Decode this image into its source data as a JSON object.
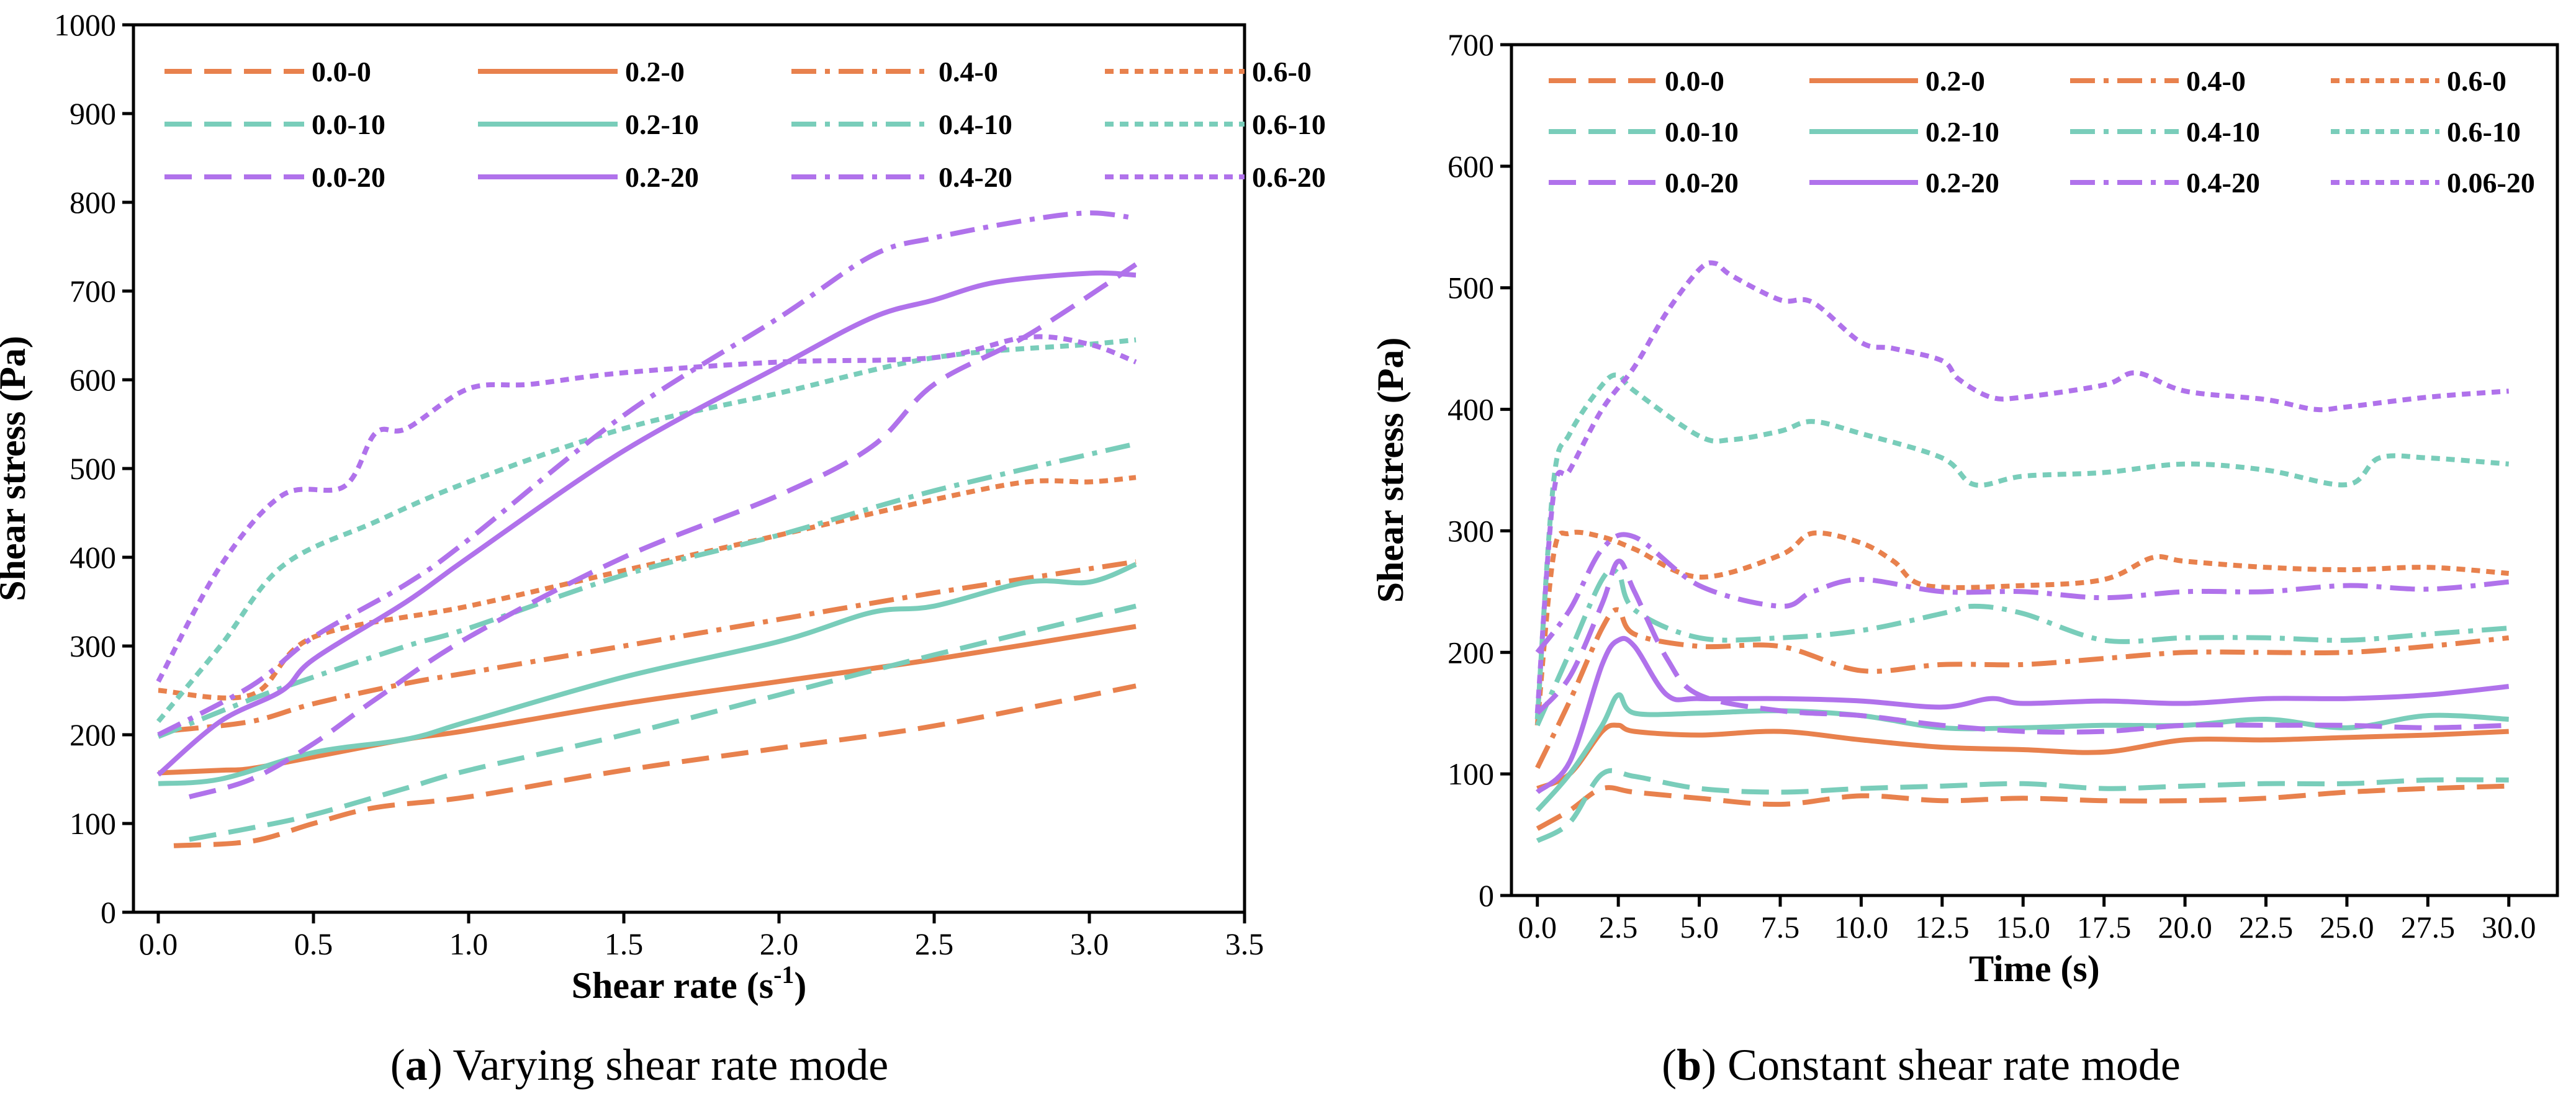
{
  "colors": {
    "orange": "#E8814D",
    "teal": "#79CDBA",
    "purple": "#B072EB"
  },
  "captions": {
    "a_letter": "a",
    "a_rest": ") Varying shear rate mode",
    "a_open": "(",
    "b_letter": "b",
    "b_rest": ") Constant shear rate mode",
    "b_open": "("
  },
  "chart_data": [
    {
      "type": "line",
      "title": "",
      "xlabel_main": "Shear rate (s",
      "xlabel_sup": "-1",
      "xlabel_close": ")",
      "ylabel": "Shear stress (Pa)",
      "xlim": [
        -0.08,
        3.5
      ],
      "ylim": [
        0,
        1000
      ],
      "xticks": [
        0.0,
        0.5,
        1.0,
        1.5,
        2.0,
        2.5,
        3.0,
        3.5
      ],
      "xtick_labels": [
        "0.0",
        "0.5",
        "1.0",
        "1.5",
        "2.0",
        "2.5",
        "3.0",
        "3.5"
      ],
      "yticks": [
        0,
        100,
        200,
        300,
        400,
        500,
        600,
        700,
        800,
        900,
        1000
      ],
      "ytick_labels": [
        "0",
        "100",
        "200",
        "300",
        "400",
        "500",
        "600",
        "700",
        "800",
        "900",
        "1000"
      ],
      "legend_position": "top-left",
      "series": [
        {
          "name": "0.0-0",
          "color": "orange",
          "dash": "longdash",
          "x": [
            0.05,
            0.3,
            0.5,
            0.7,
            1.0,
            1.5,
            2.0,
            2.5,
            3.15
          ],
          "y": [
            75,
            80,
            100,
            118,
            130,
            160,
            185,
            210,
            255
          ]
        },
        {
          "name": "0.2-0",
          "color": "orange",
          "dash": "solid",
          "x": [
            0.0,
            0.2,
            0.3,
            0.5,
            0.8,
            1.0,
            1.5,
            2.0,
            2.5,
            3.15
          ],
          "y": [
            157,
            160,
            162,
            175,
            195,
            205,
            235,
            260,
            285,
            322
          ]
        },
        {
          "name": "0.4-0",
          "color": "orange",
          "dash": "dashdot",
          "x": [
            0.05,
            0.3,
            0.5,
            0.8,
            1.0,
            1.5,
            2.0,
            2.5,
            3.15
          ],
          "y": [
            205,
            215,
            235,
            258,
            270,
            300,
            330,
            360,
            395
          ]
        },
        {
          "name": "0.6-0",
          "color": "orange",
          "dash": "shortdash",
          "x": [
            0.0,
            0.3,
            0.5,
            1.0,
            1.5,
            2.0,
            2.5,
            2.8,
            3.0,
            3.15
          ],
          "y": [
            250,
            245,
            310,
            345,
            385,
            425,
            465,
            485,
            485,
            490
          ]
        },
        {
          "name": "0.0-10",
          "color": "teal",
          "dash": "longdash",
          "x": [
            0.1,
            0.3,
            0.5,
            0.8,
            1.0,
            1.5,
            2.0,
            2.5,
            3.15
          ],
          "y": [
            82,
            95,
            110,
            140,
            160,
            200,
            245,
            290,
            345
          ]
        },
        {
          "name": "0.2-10",
          "color": "teal",
          "dash": "solid",
          "x": [
            0.0,
            0.2,
            0.5,
            0.8,
            1.0,
            1.5,
            2.0,
            2.3,
            2.5,
            2.8,
            3.0,
            3.15
          ],
          "y": [
            145,
            150,
            180,
            195,
            215,
            265,
            305,
            338,
            345,
            372,
            372,
            392
          ]
        },
        {
          "name": "0.4-10",
          "color": "teal",
          "dash": "dashdot",
          "x": [
            0.0,
            0.3,
            0.5,
            0.8,
            1.0,
            1.5,
            2.0,
            2.5,
            3.15
          ],
          "y": [
            198,
            240,
            265,
            300,
            320,
            380,
            425,
            475,
            528
          ]
        },
        {
          "name": "0.6-10",
          "color": "teal",
          "dash": "shortdash",
          "x": [
            0.0,
            0.2,
            0.4,
            0.7,
            1.0,
            1.5,
            2.0,
            2.5,
            3.0,
            3.15
          ],
          "y": [
            215,
            300,
            390,
            440,
            485,
            545,
            585,
            625,
            640,
            645
          ]
        },
        {
          "name": "0.0-20",
          "color": "purple",
          "dash": "longdash",
          "x": [
            0.1,
            0.3,
            0.5,
            0.7,
            1.0,
            1.5,
            2.0,
            2.3,
            2.5,
            2.8,
            3.15
          ],
          "y": [
            130,
            150,
            190,
            240,
            310,
            400,
            470,
            525,
            595,
            650,
            730
          ]
        },
        {
          "name": "0.2-20",
          "color": "purple",
          "dash": "solid",
          "x": [
            0.0,
            0.2,
            0.4,
            0.5,
            0.8,
            1.0,
            1.5,
            2.0,
            2.3,
            2.5,
            2.7,
            3.0,
            3.15
          ],
          "y": [
            155,
            215,
            250,
            285,
            350,
            400,
            520,
            615,
            670,
            690,
            710,
            720,
            718
          ]
        },
        {
          "name": "0.4-20",
          "color": "purple",
          "dash": "dashdot",
          "x": [
            0.0,
            0.3,
            0.5,
            0.8,
            1.0,
            1.5,
            2.0,
            2.3,
            2.5,
            2.8,
            3.0,
            3.15
          ],
          "y": [
            200,
            255,
            310,
            370,
            420,
            560,
            670,
            740,
            760,
            780,
            788,
            782
          ]
        },
        {
          "name": "0.6-20",
          "color": "purple",
          "dash": "shortdash",
          "x": [
            0.0,
            0.2,
            0.4,
            0.6,
            0.7,
            0.8,
            1.0,
            1.2,
            1.5,
            2.0,
            2.5,
            2.8,
            3.0,
            3.15
          ],
          "y": [
            260,
            390,
            470,
            480,
            540,
            545,
            590,
            595,
            608,
            620,
            625,
            648,
            640,
            620
          ]
        }
      ]
    },
    {
      "type": "line",
      "title": "",
      "xlabel": "Time (s)",
      "ylabel": "Shear stress (Pa)",
      "xlim": [
        -0.8,
        31.5
      ],
      "ylim": [
        0,
        700
      ],
      "xticks": [
        0,
        2.5,
        5,
        7.5,
        10,
        12.5,
        15,
        17.5,
        20,
        22.5,
        25,
        27.5,
        30
      ],
      "xtick_labels": [
        "0.0",
        "2.5",
        "5.0",
        "7.5",
        "10.0",
        "12.5",
        "15.0",
        "17.5",
        "20.0",
        "22.5",
        "25.0",
        "27.5",
        "30.0"
      ],
      "yticks": [
        0,
        100,
        200,
        300,
        400,
        500,
        600,
        700
      ],
      "ytick_labels": [
        "0",
        "100",
        "200",
        "300",
        "400",
        "500",
        "600",
        "700"
      ],
      "legend_position": "top-left",
      "series": [
        {
          "name": "0.0-0",
          "color": "orange",
          "dash": "longdash",
          "x": [
            0,
            1,
            2,
            3,
            5,
            7.5,
            10,
            12.5,
            15,
            17.5,
            20,
            22.5,
            25,
            27.5,
            30
          ],
          "y": [
            55,
            70,
            88,
            85,
            80,
            75,
            82,
            78,
            80,
            78,
            78,
            80,
            85,
            88,
            90
          ]
        },
        {
          "name": "0.2-0",
          "color": "orange",
          "dash": "solid",
          "x": [
            0,
            1,
            2,
            2.5,
            3,
            5,
            7.5,
            10,
            12.5,
            15,
            17.5,
            20,
            22.5,
            25,
            27.5,
            30
          ],
          "y": [
            88,
            100,
            135,
            140,
            135,
            132,
            135,
            128,
            122,
            120,
            118,
            128,
            128,
            130,
            132,
            135
          ]
        },
        {
          "name": "0.4-0",
          "color": "orange",
          "dash": "dashdot",
          "x": [
            0,
            1,
            2,
            2.5,
            3,
            5,
            7.5,
            10,
            12.5,
            15,
            17.5,
            20,
            22.5,
            25,
            27.5,
            30
          ],
          "y": [
            105,
            160,
            220,
            235,
            215,
            205,
            205,
            185,
            190,
            190,
            195,
            200,
            200,
            200,
            205,
            212
          ]
        },
        {
          "name": "0.6-0",
          "color": "orange",
          "dash": "shortdash",
          "x": [
            0,
            0.5,
            1,
            2,
            3,
            5,
            7.5,
            8.5,
            10,
            11,
            12,
            15,
            17.5,
            19,
            20,
            22.5,
            25,
            27.5,
            30
          ],
          "y": [
            140,
            280,
            298,
            295,
            285,
            262,
            280,
            298,
            290,
            275,
            255,
            255,
            260,
            278,
            275,
            270,
            268,
            270,
            265
          ]
        },
        {
          "name": "0.0-10",
          "color": "teal",
          "dash": "longdash",
          "x": [
            0,
            1,
            2,
            3,
            5,
            7.5,
            10,
            12.5,
            15,
            17.5,
            20,
            22.5,
            25,
            27.5,
            30
          ],
          "y": [
            45,
            60,
            100,
            98,
            88,
            85,
            88,
            90,
            92,
            88,
            90,
            92,
            92,
            95,
            95
          ]
        },
        {
          "name": "0.2-10",
          "color": "teal",
          "dash": "solid",
          "x": [
            0,
            1,
            2,
            2.5,
            3,
            5,
            7.5,
            10,
            12.5,
            15,
            17.5,
            20,
            22.5,
            25,
            27.5,
            30
          ],
          "y": [
            70,
            100,
            140,
            165,
            150,
            150,
            152,
            148,
            138,
            138,
            140,
            140,
            145,
            138,
            148,
            145
          ]
        },
        {
          "name": "0.4-10",
          "color": "teal",
          "dash": "dashdot",
          "x": [
            0,
            1,
            2,
            2.5,
            3,
            5,
            7.5,
            10,
            12.5,
            13.5,
            15,
            17.5,
            20,
            22.5,
            25,
            27.5,
            30
          ],
          "y": [
            140,
            200,
            260,
            265,
            235,
            212,
            212,
            218,
            232,
            238,
            232,
            210,
            212,
            212,
            210,
            215,
            220
          ]
        },
        {
          "name": "0.6-10",
          "color": "teal",
          "dash": "shortdash",
          "x": [
            0,
            0.5,
            1,
            2,
            2.5,
            3,
            5,
            6,
            7.5,
            8.5,
            10,
            12.5,
            13.5,
            15,
            17.5,
            20,
            22.5,
            25,
            26,
            27.5,
            30
          ],
          "y": [
            145,
            340,
            380,
            420,
            428,
            415,
            378,
            375,
            382,
            390,
            380,
            360,
            338,
            345,
            348,
            355,
            350,
            338,
            360,
            360,
            355
          ]
        },
        {
          "name": "0.0-20",
          "color": "purple",
          "dash": "longdash",
          "x": [
            0,
            1,
            2,
            2.5,
            3,
            4,
            5,
            7.5,
            10,
            12.5,
            15,
            17.5,
            20,
            22.5,
            25,
            27.5,
            30
          ],
          "y": [
            150,
            180,
            240,
            275,
            250,
            195,
            165,
            152,
            148,
            140,
            135,
            135,
            140,
            140,
            140,
            138,
            140
          ]
        },
        {
          "name": "0.2-20",
          "color": "purple",
          "dash": "solid",
          "x": [
            0,
            1,
            2,
            2.5,
            3,
            4,
            5,
            7.5,
            10,
            12.5,
            14,
            15,
            17.5,
            20,
            22.5,
            25,
            27.5,
            30
          ],
          "y": [
            85,
            110,
            190,
            210,
            205,
            165,
            162,
            162,
            160,
            155,
            162,
            158,
            160,
            158,
            162,
            162,
            165,
            172
          ]
        },
        {
          "name": "0.4-20",
          "color": "purple",
          "dash": "dashdot",
          "x": [
            0,
            1,
            2,
            3,
            5,
            7.5,
            8.5,
            10,
            12.5,
            15,
            17.5,
            20,
            22.5,
            25,
            27.5,
            30
          ],
          "y": [
            200,
            235,
            285,
            295,
            255,
            238,
            250,
            260,
            250,
            250,
            245,
            250,
            250,
            255,
            252,
            258
          ]
        },
        {
          "name": "0.06-20",
          "color": "purple",
          "dash": "shortdash",
          "x": [
            0,
            0.5,
            1,
            2,
            3,
            4,
            5,
            5.5,
            6,
            7.5,
            8.5,
            10,
            11,
            12.5,
            13,
            14,
            15,
            17.5,
            18.5,
            20,
            22.5,
            24,
            25,
            27.5,
            30
          ],
          "y": [
            150,
            330,
            350,
            400,
            435,
            480,
            515,
            520,
            510,
            490,
            488,
            455,
            450,
            440,
            425,
            410,
            410,
            420,
            430,
            415,
            408,
            400,
            402,
            410,
            415
          ]
        }
      ]
    }
  ]
}
